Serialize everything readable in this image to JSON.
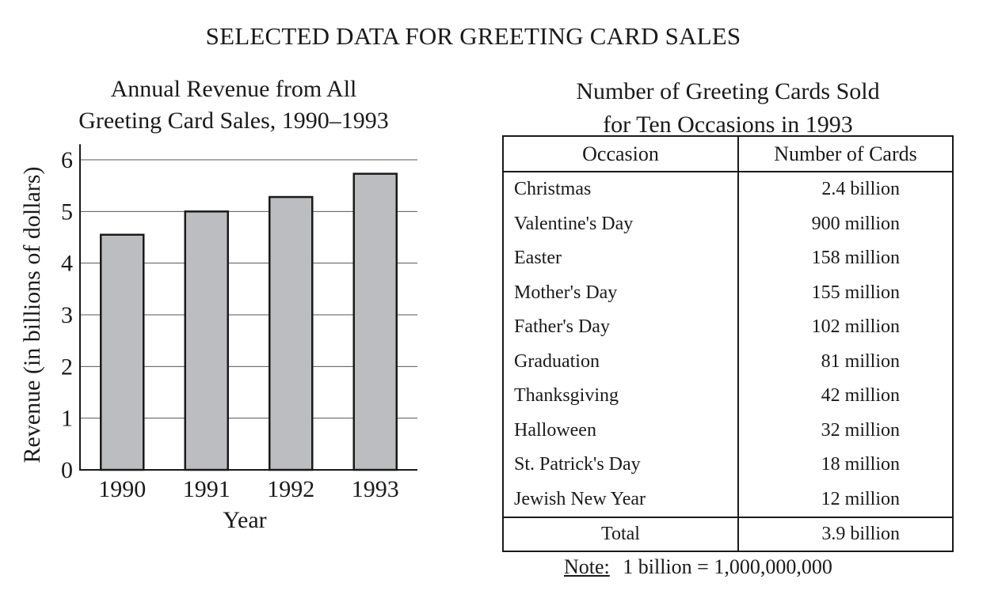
{
  "title": "SELECTED DATA FOR GREETING CARD SALES",
  "chart_data": {
    "type": "bar",
    "title_lines": [
      "Annual Revenue from All",
      "Greeting Card Sales, 1990–1993"
    ],
    "categories": [
      "1990",
      "1991",
      "1992",
      "1993"
    ],
    "values": [
      4.55,
      5.0,
      5.28,
      5.73
    ],
    "xlabel": "Year",
    "ylabel": "Revenue (in billions of dollars)",
    "ylim": [
      0,
      6.3
    ],
    "yticks": [
      0,
      1,
      2,
      3,
      4,
      5,
      6
    ],
    "grid": true,
    "bar_color": "#bcbdc0"
  },
  "table": {
    "title_lines": [
      "Number of Greeting Cards Sold",
      "for Ten Occasions in 1993"
    ],
    "headers": [
      "Occasion",
      "Number of Cards"
    ],
    "rows": [
      [
        "Christmas",
        "2.4 billion"
      ],
      [
        "Valentine's Day",
        "900 million"
      ],
      [
        "Easter",
        "158 million"
      ],
      [
        "Mother's Day",
        "155 million"
      ],
      [
        "Father's Day",
        "102 million"
      ],
      [
        "Graduation",
        "81 million"
      ],
      [
        "Thanksgiving",
        "42 million"
      ],
      [
        "Halloween",
        "32 million"
      ],
      [
        "St. Patrick's Day",
        "18 million"
      ],
      [
        "Jewish New Year",
        "12 million"
      ]
    ],
    "total_label": "Total",
    "total_value": "3.9 billion"
  },
  "note": {
    "label": "Note:",
    "text": "1 billion = 1,000,000,000"
  }
}
